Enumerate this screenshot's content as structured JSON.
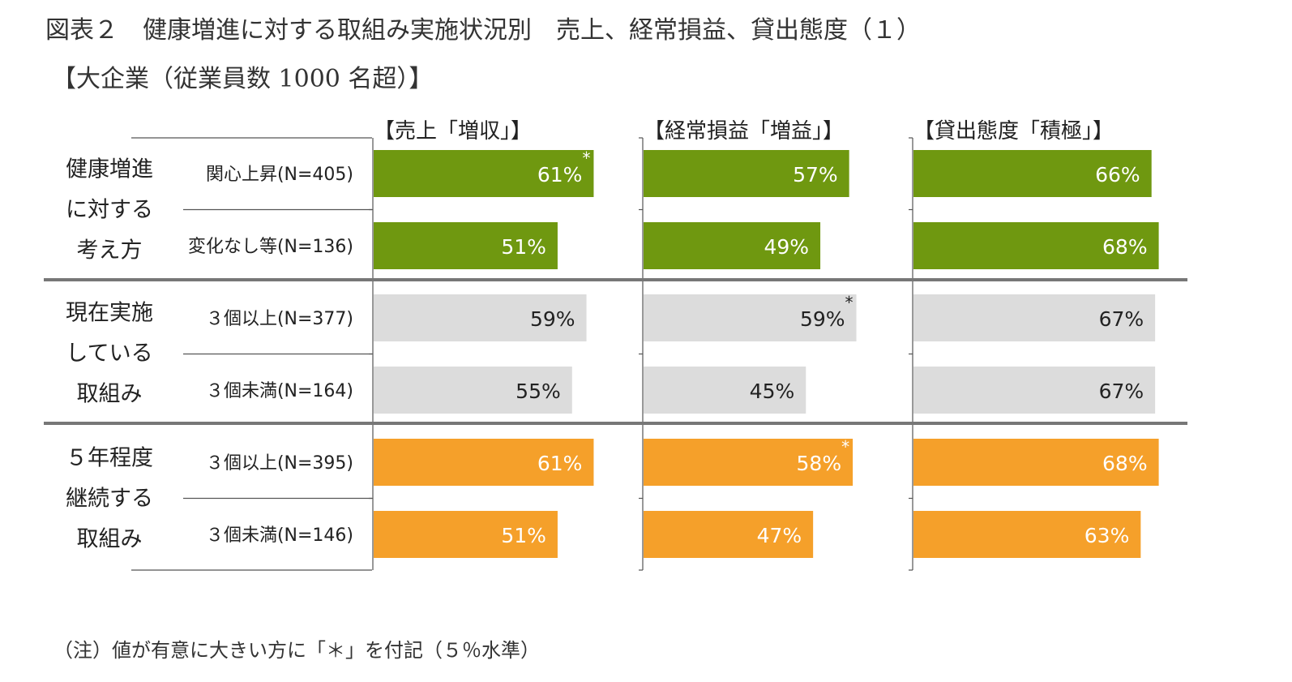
{
  "title": "図表２　健康増進に対する取組み実施状況別　売上、経常損益、貸出態度（１）",
  "subtitle": "【大企業（従業員数 1000 名超）】",
  "note": "（注）値が有意に大きい方に「＊」を付記（５％水準）",
  "colors": {
    "green": "#6F9810",
    "gray": "#DCDCDC",
    "orange": "#F5A02A",
    "separator": "#777777",
    "line": "#555555"
  },
  "chart_data": {
    "type": "bar",
    "orientation": "horizontal",
    "panels": [
      "【売上「増収」】",
      "【経常損益「増益」】",
      "【貸出態度「積極」】"
    ],
    "groups": [
      {
        "label_lines": [
          "健康増進",
          "に対する",
          "考え方"
        ],
        "color": "green",
        "rows": [
          {
            "label": "関心上昇(N=405)",
            "values": [
              61,
              57,
              66
            ],
            "labels": [
              "61%",
              "57%",
              "66%"
            ],
            "significant": [
              true,
              false,
              false
            ]
          },
          {
            "label": "変化なし等(N=136)",
            "values": [
              51,
              49,
              68
            ],
            "labels": [
              "51%",
              "49%",
              "68%"
            ],
            "significant": [
              false,
              false,
              false
            ]
          }
        ]
      },
      {
        "label_lines": [
          "現在実施",
          "している",
          "取組み"
        ],
        "color": "gray",
        "rows": [
          {
            "label": "３個以上(N=377)",
            "values": [
              59,
              59,
              67
            ],
            "labels": [
              "59%",
              "59%",
              "67%"
            ],
            "significant": [
              false,
              true,
              false
            ]
          },
          {
            "label": "３個未満(N=164)",
            "values": [
              55,
              45,
              67
            ],
            "labels": [
              "55%",
              "45%",
              "67%"
            ],
            "significant": [
              false,
              false,
              false
            ]
          }
        ]
      },
      {
        "label_lines": [
          "５年程度",
          "継続する",
          "取組み"
        ],
        "color": "orange",
        "rows": [
          {
            "label": "３個以上(N=395)",
            "values": [
              61,
              58,
              68
            ],
            "labels": [
              "61%",
              "58%",
              "68%"
            ],
            "significant": [
              false,
              true,
              false
            ]
          },
          {
            "label": "３個未満(N=146)",
            "values": [
              51,
              47,
              63
            ],
            "labels": [
              "51%",
              "47%",
              "63%"
            ],
            "significant": [
              false,
              false,
              false
            ]
          }
        ]
      }
    ],
    "significance_mark": "*",
    "xlim": [
      0,
      100
    ],
    "grid": false
  }
}
